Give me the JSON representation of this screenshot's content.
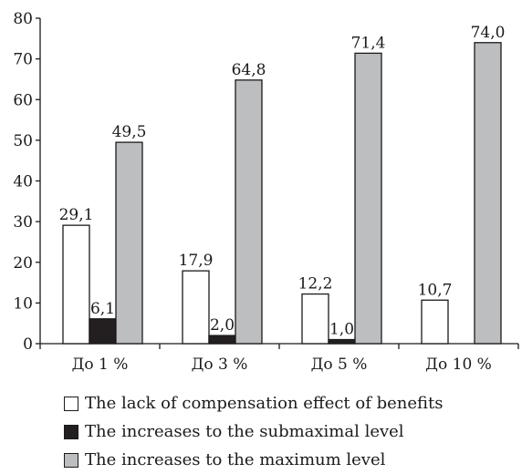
{
  "chart_data": {
    "type": "bar",
    "categories": [
      "До 1 %",
      "До 3 %",
      "До 5 %",
      "До 10 %"
    ],
    "series": [
      {
        "name": "The lack of compensation effect of benefits",
        "values": [
          29.1,
          17.9,
          12.2,
          10.7
        ],
        "labels": [
          "29,1",
          "17,9",
          "12,2",
          "10,7"
        ],
        "color": "#ffffff"
      },
      {
        "name": "The increases to the submaximal level",
        "values": [
          6.1,
          2.0,
          1.0,
          null
        ],
        "labels": [
          "6,1",
          "2,0",
          "1,0",
          ""
        ],
        "color": "#231f20"
      },
      {
        "name": "The increases to the maximum level",
        "values": [
          49.5,
          64.8,
          71.4,
          74.0
        ],
        "labels": [
          "49,5",
          "64,8",
          "71,4",
          "74,0"
        ],
        "color": "#bcbec0"
      }
    ],
    "yticks": [
      "0",
      "10",
      "20",
      "30",
      "40",
      "50",
      "60",
      "70",
      "80"
    ],
    "ylim": [
      0,
      80
    ],
    "xlabel": "",
    "ylabel": "",
    "grid": false,
    "legend_position": "bottom"
  }
}
